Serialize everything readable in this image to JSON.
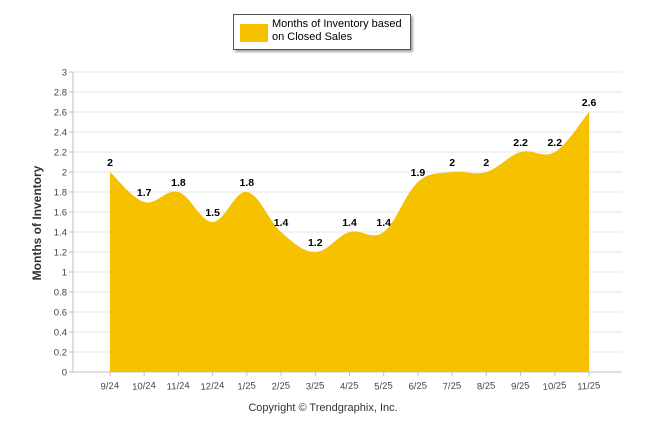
{
  "colors": {
    "fill": "#f6c200",
    "grid": "#e6e6e6",
    "axis": "#c0c0c0",
    "tick_text": "#444444",
    "label_text": "#000000"
  },
  "legend": {
    "label": "Months of Inventory based on Closed Sales",
    "placement": "top-center"
  },
  "copyright": "Copyright © Trendgraphix, Inc.",
  "chart_data": {
    "type": "area",
    "categories": [
      "9/24",
      "10/24",
      "11/24",
      "12/24",
      "1/25",
      "2/25",
      "3/25",
      "4/25",
      "5/25",
      "6/25",
      "7/25",
      "8/25",
      "9/25",
      "10/25",
      "11/25"
    ],
    "series": [
      {
        "name": "Months of Inventory based on Closed Sales",
        "values": [
          2,
          1.7,
          1.8,
          1.5,
          1.8,
          1.4,
          1.2,
          1.4,
          1.4,
          1.9,
          2,
          2,
          2.2,
          2.2,
          2.6
        ]
      }
    ],
    "data_labels": [
      "2",
      "1.7",
      "1.8",
      "1.5",
      "1.8",
      "1.4",
      "1.2",
      "1.4",
      "1.4",
      "1.9",
      "2",
      "2",
      "2.2",
      "2.2",
      "2.6"
    ],
    "yticks": [
      "0",
      "0.2",
      "0.4",
      "0.6",
      "0.8",
      "1",
      "1.2",
      "1.4",
      "1.6",
      "1.8",
      "2",
      "2.2",
      "2.4",
      "2.6",
      "2.8",
      "3"
    ],
    "ylim": [
      0,
      3
    ],
    "xlabel": "",
    "ylabel": "Months of Inventory",
    "grid": true,
    "smooth": true
  }
}
